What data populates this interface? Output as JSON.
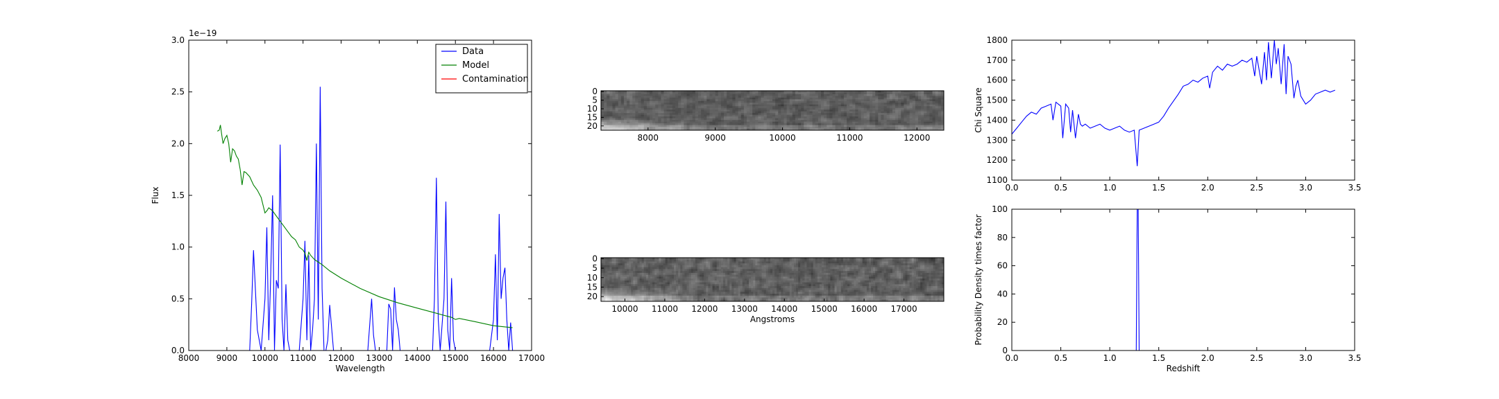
{
  "chart_data": [
    {
      "type": "line",
      "xlabel": "Wavelength",
      "ylabel": "Flux",
      "xlim": [
        8000,
        17000
      ],
      "ylim": [
        0,
        3.0
      ],
      "x_ticks": [
        8000,
        9000,
        10000,
        11000,
        12000,
        13000,
        14000,
        15000,
        16000,
        17000
      ],
      "y_ticks": [
        "0.0",
        "0.5",
        "1.0",
        "1.5",
        "2.0",
        "2.5",
        "3.0"
      ],
      "y_offset_text": "1e−19",
      "legend_position": "top-right",
      "series": [
        {
          "name": "Data",
          "color": "#0000ff",
          "x": [
            8700,
            8900,
            9100,
            9300,
            9500,
            9600,
            9650,
            9700,
            9800,
            9900,
            10000,
            10050,
            10100,
            10150,
            10200,
            10250,
            10300,
            10350,
            10400,
            10450,
            10500,
            10550,
            10600,
            10650,
            10700,
            10800,
            10900,
            11000,
            11050,
            11100,
            11150,
            11200,
            11250,
            11300,
            11350,
            11400,
            11450,
            11500,
            11550,
            11600,
            11650,
            11700,
            11800,
            11900,
            11950,
            12000,
            12100,
            12300,
            12500,
            12700,
            12800,
            12850,
            12900,
            13000,
            13200,
            13250,
            13300,
            13350,
            13400,
            13450,
            13500,
            13550,
            13600,
            13700,
            13900,
            14100,
            14300,
            14400,
            14450,
            14500,
            14550,
            14600,
            14700,
            14750,
            14800,
            14850,
            14900,
            14950,
            15000,
            15050,
            15100,
            15300,
            15500,
            15700,
            15900,
            16000,
            16050,
            16100,
            16150,
            16200,
            16250,
            16300,
            16350,
            16400,
            16450,
            16500
          ],
          "y": [
            0,
            0,
            0,
            0,
            0,
            0,
            0.45,
            0.97,
            0.2,
            0,
            0.5,
            1.19,
            0.1,
            0.7,
            1.5,
            0,
            0.68,
            0.6,
            1.99,
            0.3,
            0,
            0.64,
            0.1,
            0,
            0,
            0,
            0,
            0.5,
            1.06,
            0.1,
            0.92,
            0,
            0.2,
            0.5,
            2.0,
            0.3,
            2.55,
            0.6,
            0,
            0,
            0.1,
            0.44,
            0,
            0,
            0,
            0,
            0,
            0,
            0,
            0,
            0.5,
            0.15,
            0,
            0,
            0,
            0.45,
            0.4,
            0,
            0.61,
            0.3,
            0.2,
            0,
            0,
            0,
            0,
            0,
            0,
            0,
            0.5,
            1.67,
            0.3,
            0,
            0.5,
            1.44,
            0.2,
            0,
            0.7,
            0.1,
            0,
            0,
            0,
            0,
            0,
            0,
            0,
            0.3,
            0.93,
            0.1,
            1.32,
            0.5,
            0.7,
            0.8,
            0.3,
            0,
            0.27,
            0
          ]
        },
        {
          "name": "Model",
          "color": "#008000",
          "x": [
            8750,
            8800,
            8830,
            8860,
            8900,
            8950,
            9000,
            9050,
            9100,
            9150,
            9200,
            9250,
            9300,
            9350,
            9400,
            9450,
            9500,
            9600,
            9700,
            9800,
            9900,
            10000,
            10050,
            10100,
            10200,
            10300,
            10400,
            10500,
            10600,
            10700,
            10800,
            10900,
            11000,
            11050,
            11100,
            11150,
            11200,
            11300,
            11500,
            11700,
            12000,
            12500,
            13000,
            13500,
            14000,
            14500,
            14900,
            15000,
            15100,
            15500,
            16000,
            16500
          ],
          "y": [
            2.12,
            2.13,
            2.18,
            2.1,
            2.0,
            2.05,
            2.08,
            2.0,
            1.82,
            1.95,
            1.93,
            1.88,
            1.85,
            1.75,
            1.6,
            1.73,
            1.72,
            1.68,
            1.6,
            1.55,
            1.48,
            1.33,
            1.35,
            1.38,
            1.35,
            1.3,
            1.25,
            1.2,
            1.15,
            1.1,
            1.07,
            1.0,
            0.97,
            0.94,
            0.87,
            0.95,
            0.92,
            0.88,
            0.83,
            0.77,
            0.7,
            0.6,
            0.52,
            0.46,
            0.41,
            0.36,
            0.32,
            0.3,
            0.31,
            0.28,
            0.24,
            0.22
          ]
        },
        {
          "name": "Contamination",
          "color": "#ff0000",
          "x": [
            8700,
            16500
          ],
          "y": [
            0.0,
            0.0
          ]
        }
      ]
    },
    {
      "type": "heatmap",
      "xlim": [
        7300,
        12400
      ],
      "x_ticks": [
        8000,
        9000,
        10000,
        11000,
        12000
      ],
      "y_ticks": [
        0,
        5,
        10,
        15,
        20
      ],
      "rows": 23,
      "cols": 120,
      "seed": 7,
      "bright_region": "bottom-left"
    },
    {
      "type": "heatmap",
      "xlim": [
        9400,
        18000
      ],
      "x_ticks": [
        10000,
        11000,
        12000,
        13000,
        14000,
        15000,
        16000,
        17000
      ],
      "y_ticks": [
        0,
        5,
        10,
        15,
        20
      ],
      "xlabel": "Angstroms",
      "rows": 23,
      "cols": 160,
      "seed": 13,
      "bright_region": "bottom-left"
    },
    {
      "type": "line",
      "ylabel": "Chi Square",
      "xlim": [
        0.0,
        3.5
      ],
      "ylim": [
        1100,
        1800
      ],
      "x_ticks": [
        "0.0",
        "0.5",
        "1.0",
        "1.5",
        "2.0",
        "2.5",
        "3.0",
        "3.5"
      ],
      "y_ticks": [
        1100,
        1200,
        1300,
        1400,
        1500,
        1600,
        1700,
        1800
      ],
      "series": [
        {
          "color": "#0000ff",
          "x": [
            0.0,
            0.05,
            0.1,
            0.15,
            0.2,
            0.25,
            0.3,
            0.35,
            0.4,
            0.42,
            0.45,
            0.5,
            0.52,
            0.55,
            0.58,
            0.6,
            0.62,
            0.65,
            0.68,
            0.7,
            0.72,
            0.75,
            0.8,
            0.85,
            0.9,
            0.95,
            1.0,
            1.05,
            1.1,
            1.15,
            1.2,
            1.25,
            1.28,
            1.3,
            1.35,
            1.4,
            1.45,
            1.5,
            1.55,
            1.6,
            1.7,
            1.75,
            1.8,
            1.85,
            1.9,
            1.95,
            2.0,
            2.02,
            2.05,
            2.1,
            2.15,
            2.2,
            2.25,
            2.3,
            2.35,
            2.4,
            2.45,
            2.48,
            2.5,
            2.55,
            2.58,
            2.6,
            2.62,
            2.65,
            2.68,
            2.7,
            2.72,
            2.75,
            2.78,
            2.8,
            2.82,
            2.85,
            2.88,
            2.9,
            2.92,
            2.95,
            3.0,
            3.05,
            3.1,
            3.15,
            3.2,
            3.25,
            3.3
          ],
          "y": [
            1330,
            1360,
            1390,
            1420,
            1440,
            1430,
            1460,
            1470,
            1480,
            1400,
            1490,
            1470,
            1310,
            1480,
            1460,
            1340,
            1450,
            1310,
            1430,
            1380,
            1370,
            1380,
            1360,
            1370,
            1380,
            1360,
            1350,
            1360,
            1370,
            1350,
            1340,
            1350,
            1170,
            1350,
            1360,
            1370,
            1380,
            1390,
            1420,
            1460,
            1530,
            1570,
            1580,
            1600,
            1590,
            1610,
            1620,
            1560,
            1640,
            1670,
            1650,
            1680,
            1670,
            1680,
            1700,
            1690,
            1710,
            1620,
            1720,
            1580,
            1740,
            1600,
            1790,
            1610,
            1800,
            1680,
            1760,
            1580,
            1780,
            1530,
            1720,
            1680,
            1510,
            1570,
            1600,
            1520,
            1480,
            1500,
            1530,
            1540,
            1550,
            1540,
            1550
          ]
        }
      ]
    },
    {
      "type": "line",
      "xlabel": "Redshift",
      "ylabel": "Probability Density times factor",
      "xlim": [
        0.0,
        3.5
      ],
      "ylim": [
        0,
        100
      ],
      "x_ticks": [
        "0.0",
        "0.5",
        "1.0",
        "1.5",
        "2.0",
        "2.5",
        "3.0",
        "3.5"
      ],
      "y_ticks": [
        0,
        20,
        40,
        60,
        80,
        100
      ],
      "series": [
        {
          "color": "#0000ff",
          "x": [
            0.0,
            1.27,
            1.28,
            1.29,
            1.3,
            3.3
          ],
          "y": [
            0,
            0,
            100,
            100,
            0,
            0
          ]
        }
      ]
    }
  ]
}
